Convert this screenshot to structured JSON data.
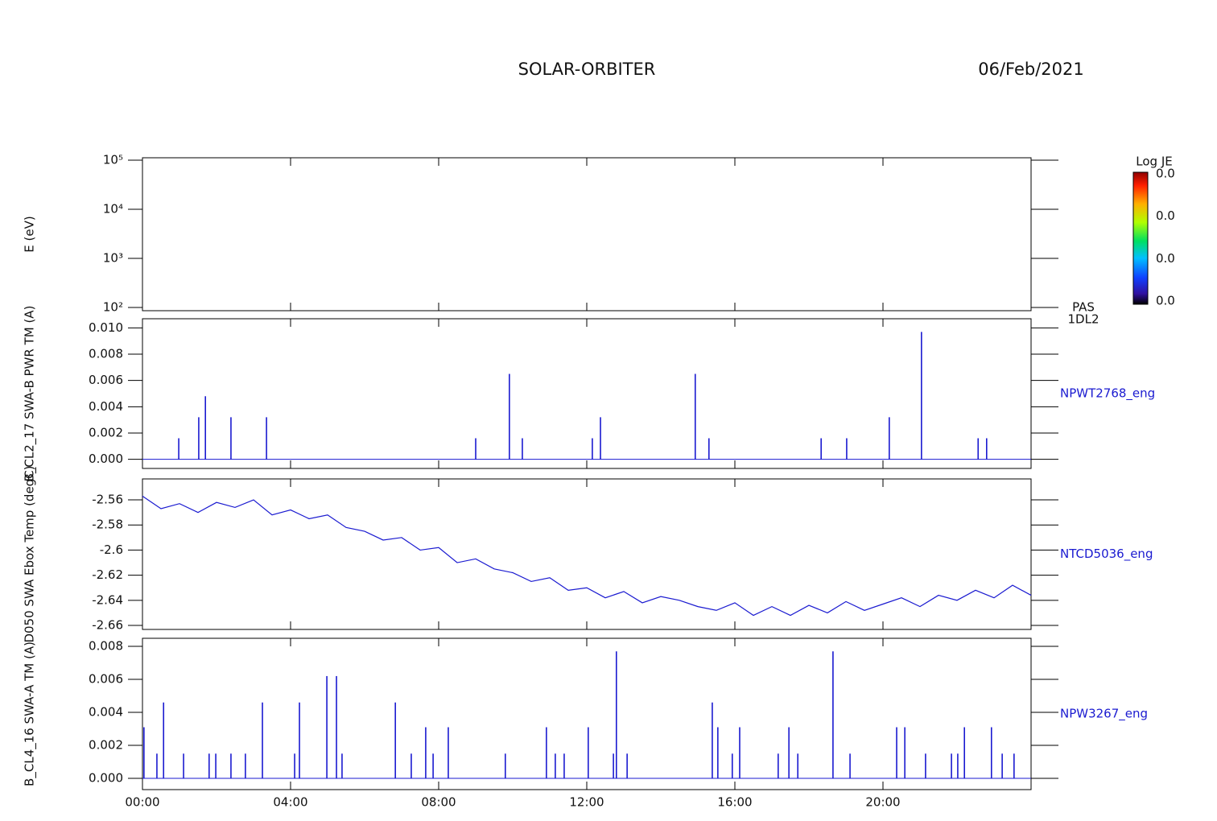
{
  "header": {
    "title": "SOLAR-ORBITER",
    "date": "06/Feb/2021"
  },
  "x_axis": {
    "xlim": [
      0,
      24
    ],
    "xticks": [
      {
        "value": 0,
        "label": "00:00"
      },
      {
        "value": 4,
        "label": "04:00"
      },
      {
        "value": 8,
        "label": "08:00"
      },
      {
        "value": 12,
        "label": "12:00"
      },
      {
        "value": 16,
        "label": "16:00"
      },
      {
        "value": 20,
        "label": "20:00"
      }
    ]
  },
  "chart_data": [
    {
      "type": "spectrogram",
      "ylabel": "E (eV)",
      "log_scale": true,
      "ylim": [
        86,
        112000
      ],
      "yticks": [
        {
          "value": 100,
          "label": "10²"
        },
        {
          "value": 1000,
          "label": "10³"
        },
        {
          "value": 10000,
          "label": "10⁴"
        },
        {
          "value": 100000,
          "label": "10⁵"
        }
      ],
      "right_labels": [
        "PAS",
        "1DL2"
      ],
      "colorbar": {
        "title": "Log JE",
        "labels": [
          "0.0",
          "0.0",
          "0.0",
          "0.0"
        ]
      }
    },
    {
      "type": "spike",
      "ylabel": "B_CL2_17 SWA-B PWR TM (A)",
      "ylim": [
        -0.0007,
        0.0107
      ],
      "yticks": [
        {
          "value": 0,
          "label": "0.000"
        },
        {
          "value": 0.002,
          "label": "0.002"
        },
        {
          "value": 0.004,
          "label": "0.004"
        },
        {
          "value": 0.006,
          "label": "0.006"
        },
        {
          "value": 0.008,
          "label": "0.008"
        },
        {
          "value": 0.01,
          "label": "0.010"
        }
      ],
      "x": [
        0.98,
        1.52,
        1.7,
        2.39,
        3.35,
        9.0,
        9.91,
        10.26,
        12.15,
        12.37,
        14.93,
        15.3,
        18.33,
        19.02,
        20.17,
        21.04,
        22.57,
        22.8
      ],
      "series": [
        {
          "name": "NPWT2768_eng",
          "color": "#1a1ad0",
          "values": [
            0.0016,
            0.0032,
            0.0048,
            0.0032,
            0.0032,
            0.0016,
            0.0065,
            0.0016,
            0.0016,
            0.0032,
            0.0065,
            0.0016,
            0.0016,
            0.0016,
            0.0032,
            0.0097,
            0.0016,
            0.0016
          ]
        }
      ]
    },
    {
      "type": "line",
      "ylabel": "D050 SWA Ebox Temp (degC)",
      "ylim": [
        -2.6632,
        -2.5433
      ],
      "yticks": [
        -2.66,
        -2.64,
        -2.62,
        -2.6,
        -2.58,
        -2.56
      ],
      "x": [
        0,
        0.5,
        1,
        1.5,
        2,
        2.5,
        3,
        3.5,
        4,
        4.5,
        5,
        5.5,
        6,
        6.5,
        7,
        7.5,
        8,
        8.5,
        9,
        9.5,
        10,
        10.5,
        11,
        11.5,
        12,
        12.5,
        13,
        13.5,
        14,
        14.5,
        15,
        15.5,
        16,
        16.5,
        17,
        17.5,
        18,
        18.5,
        19,
        19.5,
        20,
        20.5,
        21,
        21.5,
        22,
        22.5,
        23,
        23.5,
        24
      ],
      "series": [
        {
          "name": "NTCD5036_eng",
          "color": "#1a1ad0",
          "values": [
            -2.557,
            -2.567,
            -2.563,
            -2.57,
            -2.562,
            -2.566,
            -2.56,
            -2.572,
            -2.568,
            -2.575,
            -2.572,
            -2.582,
            -2.585,
            -2.592,
            -2.59,
            -2.6,
            -2.598,
            -2.61,
            -2.607,
            -2.615,
            -2.618,
            -2.625,
            -2.622,
            -2.632,
            -2.63,
            -2.638,
            -2.633,
            -2.642,
            -2.637,
            -2.64,
            -2.645,
            -2.648,
            -2.642,
            -2.652,
            -2.645,
            -2.652,
            -2.644,
            -2.65,
            -2.641,
            -2.648,
            -2.643,
            -2.638,
            -2.645,
            -2.636,
            -2.64,
            -2.632,
            -2.638,
            -2.628,
            -2.636
          ]
        }
      ]
    },
    {
      "type": "spike",
      "ylabel": "B_CL4_16 SWA-A TM (A)",
      "ylim": [
        -0.00068,
        0.00849
      ],
      "yticks": [
        {
          "value": 0,
          "label": "0.000"
        },
        {
          "value": 0.002,
          "label": "0.002"
        },
        {
          "value": 0.004,
          "label": "0.004"
        },
        {
          "value": 0.006,
          "label": "0.006"
        },
        {
          "value": 0.008,
          "label": "0.008"
        }
      ],
      "x": [
        0.04,
        0.39,
        0.57,
        1.11,
        1.8,
        1.98,
        2.39,
        2.78,
        3.24,
        4.11,
        4.24,
        4.98,
        5.24,
        5.39,
        6.83,
        7.26,
        7.65,
        7.85,
        8.26,
        9.8,
        10.91,
        11.15,
        11.39,
        12.04,
        12.72,
        12.8,
        13.09,
        15.39,
        15.54,
        15.93,
        16.13,
        17.17,
        17.46,
        17.7,
        18.65,
        19.11,
        20.37,
        20.59,
        21.15,
        21.85,
        22.02,
        22.2,
        22.93,
        23.22,
        23.54
      ],
      "series": [
        {
          "name": "NPW3267_eng",
          "color": "#1a1ad0",
          "values": [
            0.0031,
            0.0015,
            0.0046,
            0.0015,
            0.0015,
            0.0015,
            0.0015,
            0.0015,
            0.0046,
            0.0015,
            0.0046,
            0.0062,
            0.0062,
            0.0015,
            0.0046,
            0.0015,
            0.0031,
            0.0015,
            0.0031,
            0.0015,
            0.0031,
            0.0015,
            0.0015,
            0.0031,
            0.0015,
            0.0077,
            0.0015,
            0.0046,
            0.0031,
            0.0015,
            0.0031,
            0.0015,
            0.0031,
            0.0015,
            0.0077,
            0.0015,
            0.0031,
            0.0031,
            0.0015,
            0.0015,
            0.0015,
            0.0031,
            0.0031,
            0.0015,
            0.0015
          ]
        }
      ]
    }
  ]
}
